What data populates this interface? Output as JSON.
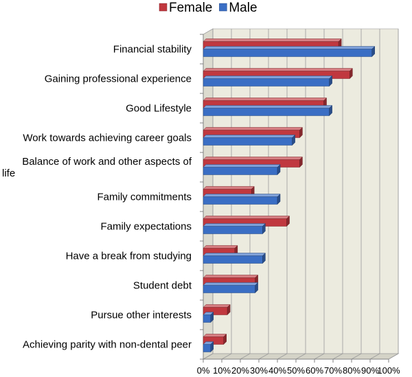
{
  "chart_data": {
    "type": "bar",
    "orientation": "horizontal",
    "style": "3d",
    "categories": [
      "Financial stability",
      "Gaining professional experience",
      "Good Lifestyle",
      "Work towards achieving career goals",
      "Balance of work and other aspects of life",
      "Family commitments",
      "Family expectations",
      "Have a break from studying",
      "Student debt",
      "Pursue other interests",
      "Achieving parity with non-dental peer"
    ],
    "category_display": [
      [
        "Financial stability"
      ],
      [
        "Gaining professional experience"
      ],
      [
        "Good Lifestyle"
      ],
      [
        "Work towards achieving career goals"
      ],
      [
        "Balance of work and other aspects of",
        "life"
      ],
      [
        "Family commitments"
      ],
      [
        "Family expectations"
      ],
      [
        "Have a break from studying"
      ],
      [
        "Student debt"
      ],
      [
        "Pursue other interests"
      ],
      [
        "Achieving parity with non-dental peer"
      ]
    ],
    "series": [
      {
        "name": "Female",
        "color": "#c0383f",
        "values": [
          73,
          79,
          65,
          52,
          52,
          26,
          45,
          17,
          28,
          13,
          11
        ]
      },
      {
        "name": "Male",
        "color": "#3a6ec4",
        "values": [
          91,
          68,
          68,
          48,
          40,
          40,
          32,
          32,
          28,
          4,
          4
        ]
      }
    ],
    "xlim": [
      0,
      100
    ],
    "xticks": [
      "0%",
      "10%",
      "20%",
      "30%",
      "40%",
      "50%",
      "60%",
      "70%",
      "80%",
      "90%",
      "100%"
    ],
    "grid": true,
    "legend": "top-center"
  }
}
